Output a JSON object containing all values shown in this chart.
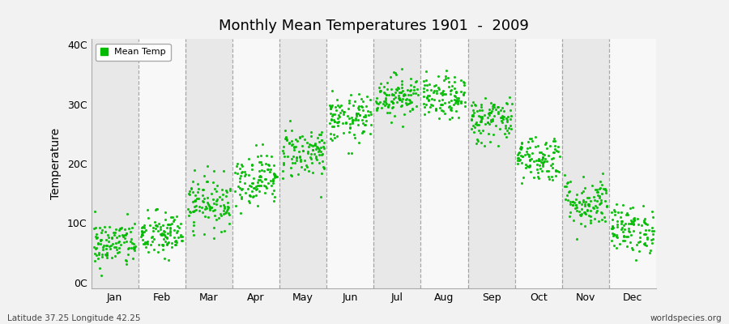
{
  "title": "Monthly Mean Temperatures 1901  -  2009",
  "ylabel": "Temperature",
  "footer_left": "Latitude 37.25 Longitude 42.25",
  "footer_right": "worldspecies.org",
  "legend_label": "Mean Temp",
  "dot_color": "#00BB00",
  "background_color": "#F2F2F2",
  "plot_bg_color": "#E8E8E8",
  "alt_band_color": "#F8F8F8",
  "grid_line_color": "#888888",
  "yticks": [
    0,
    10,
    20,
    30,
    40
  ],
  "ytick_labels": [
    "0C",
    "10C",
    "20C",
    "30C",
    "40C"
  ],
  "months": [
    "Jan",
    "Feb",
    "Mar",
    "Apr",
    "May",
    "Jun",
    "Jul",
    "Aug",
    "Sep",
    "Oct",
    "Nov",
    "Dec"
  ],
  "monthly_means": [
    6.5,
    8.0,
    13.5,
    17.5,
    22.0,
    27.5,
    31.5,
    31.0,
    27.5,
    21.0,
    13.5,
    9.0
  ],
  "monthly_stds": [
    2.0,
    2.0,
    2.2,
    2.2,
    2.2,
    2.0,
    1.8,
    1.8,
    2.0,
    2.0,
    2.2,
    2.0
  ],
  "n_years": 109,
  "ylim": [
    -1,
    41
  ],
  "dot_size": 5,
  "dot_alpha": 0.9
}
